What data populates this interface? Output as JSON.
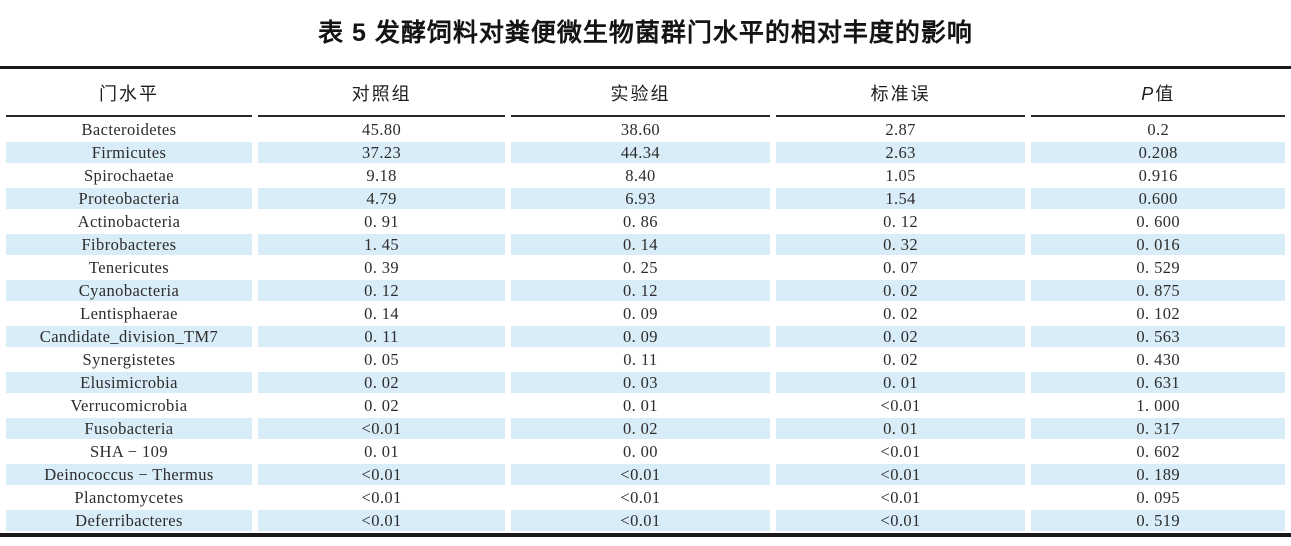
{
  "title": "表 5 发酵饲料对粪便微生物菌群门水平的相对丰度的影响",
  "table": {
    "headers": {
      "phylum": "门水平",
      "control": "对照组",
      "experiment": "实验组",
      "se": "标准误",
      "p_prefix": "P",
      "p_suffix": "值"
    },
    "stripe_color": "#d9edf8",
    "rule_color": "#1a1a1a",
    "rows": [
      [
        "Bacteroidetes",
        "45.80",
        "38.60",
        "2.87",
        "0.2"
      ],
      [
        "Firmicutes",
        "37.23",
        "44.34",
        "2.63",
        "0.208"
      ],
      [
        "Spirochaetae",
        "9.18",
        "8.40",
        "1.05",
        "0.916"
      ],
      [
        "Proteobacteria",
        "4.79",
        "6.93",
        "1.54",
        "0.600"
      ],
      [
        "Actinobacteria",
        "0. 91",
        "0. 86",
        "0. 12",
        "0. 600"
      ],
      [
        "Fibrobacteres",
        "1. 45",
        "0. 14",
        "0. 32",
        "0. 016"
      ],
      [
        "Tenericutes",
        "0. 39",
        "0. 25",
        "0. 07",
        "0. 529"
      ],
      [
        "Cyanobacteria",
        "0. 12",
        "0. 12",
        "0. 02",
        "0. 875"
      ],
      [
        "Lentisphaerae",
        "0. 14",
        "0. 09",
        "0. 02",
        "0. 102"
      ],
      [
        "Candidate_division_TM7",
        "0. 11",
        "0. 09",
        "0. 02",
        "0. 563"
      ],
      [
        "Synergistetes",
        "0. 05",
        "0. 11",
        "0. 02",
        "0. 430"
      ],
      [
        "Elusimicrobia",
        "0. 02",
        "0. 03",
        "0. 01",
        "0. 631"
      ],
      [
        "Verrucomicrobia",
        "0. 02",
        "0. 01",
        "<0.01",
        "1. 000"
      ],
      [
        "Fusobacteria",
        "<0.01",
        "0. 02",
        "0. 01",
        "0. 317"
      ],
      [
        "SHA − 109",
        "0. 01",
        "0. 00",
        "<0.01",
        "0. 602"
      ],
      [
        "Deinococcus − Thermus",
        "<0.01",
        "<0.01",
        "<0.01",
        "0. 189"
      ],
      [
        "Planctomycetes",
        "<0.01",
        "<0.01",
        "<0.01",
        "0. 095"
      ],
      [
        "Deferribacteres",
        "<0.01",
        "<0.01",
        "<0.01",
        "0. 519"
      ]
    ]
  }
}
